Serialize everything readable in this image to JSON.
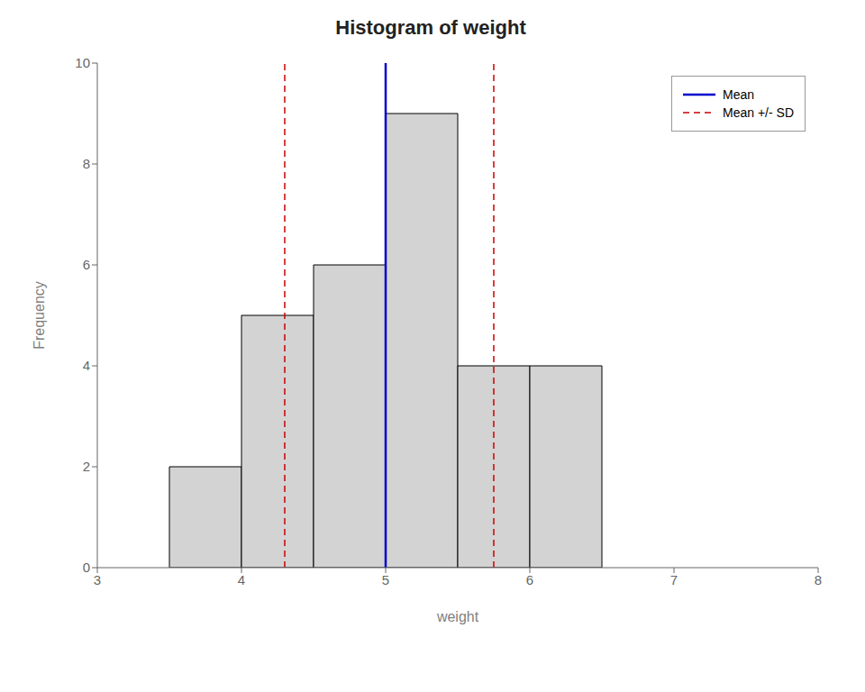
{
  "chart_data": {
    "type": "histogram",
    "title": "Histogram of weight",
    "xlabel": "weight",
    "ylabel": "Frequency",
    "bins": [
      3.5,
      4.0,
      4.5,
      5.0,
      5.5,
      6.0,
      6.5
    ],
    "values": [
      2,
      5,
      6,
      9,
      4,
      4
    ],
    "color": "#d3d3d3",
    "xlim": [
      3,
      8
    ],
    "ylim": [
      0,
      10
    ],
    "xticks": [
      3,
      4,
      5,
      6,
      7,
      8
    ],
    "yticks": [
      0,
      2,
      4,
      6,
      8,
      10
    ],
    "grid": false,
    "legend": "upper right",
    "lines": [
      {
        "name": "Mean",
        "color": "#0000cc",
        "line_style": "solid",
        "values": [
          5.0
        ]
      },
      {
        "name": "Mean +/- SD",
        "color": "#cc0000",
        "line_style": "dashed",
        "values": [
          4.3,
          5.75
        ]
      }
    ]
  }
}
